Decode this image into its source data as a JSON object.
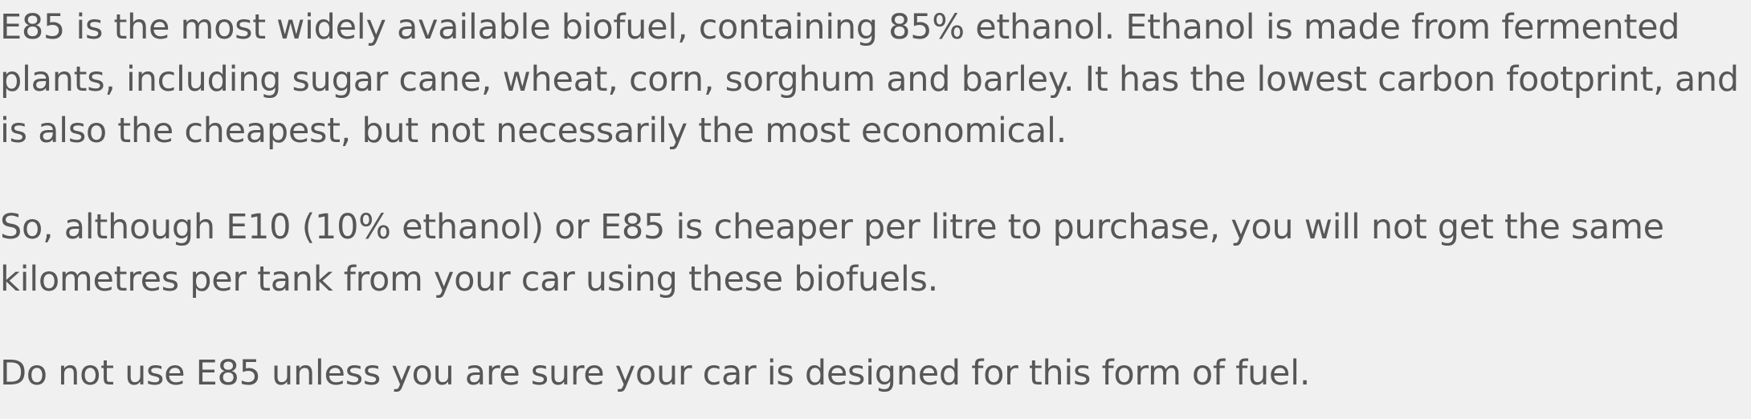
{
  "article": {
    "paragraphs": [
      {
        "lines": [
          "E85 is the most widely available biofuel, containing 85% ethanol. Ethanol is made from fermented",
          "plants, including sugar cane, wheat, corn, sorghum and barley. It has the lowest carbon footprint, and",
          "is also the cheapest, but not necessarily the most economical."
        ]
      },
      {
        "lines": [
          "So, although E10 (10% ethanol) or E85 is cheaper per litre to purchase, you will not get the same",
          "kilometres per tank from your car using these biofuels."
        ]
      },
      {
        "lines": [
          "Do not use E85 unless you are sure your car is designed for this form of fuel."
        ]
      }
    ]
  }
}
